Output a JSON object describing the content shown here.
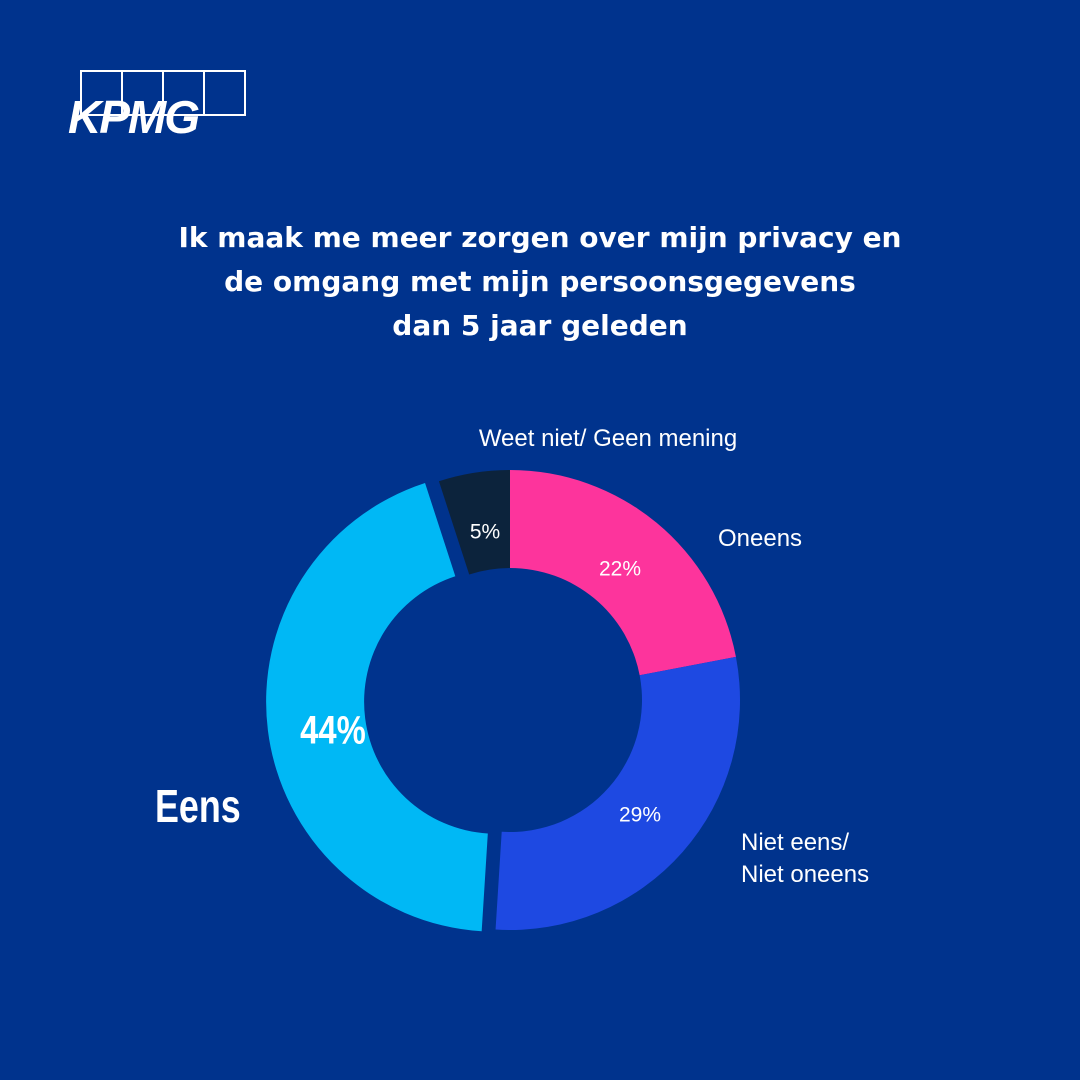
{
  "brand": {
    "logo_text": "KPMG"
  },
  "title_lines": [
    "Ik maak me meer zorgen over mijn privacy en",
    "de omgang met mijn persoonsgegevens",
    "dan 5 jaar geleden"
  ],
  "chart_data": {
    "type": "pie",
    "donut": true,
    "title": "Ik maak me meer zorgen over mijn privacy en de omgang met mijn persoonsgegevens dan 5 jaar geleden",
    "slices": [
      {
        "label": "Oneens",
        "value": 22,
        "value_label": "22%",
        "color": "#FD349C"
      },
      {
        "label": "Niet eens/ Niet oneens",
        "label_lines": [
          "Niet eens/",
          "Niet oneens"
        ],
        "value": 29,
        "value_label": "29%",
        "color": "#1E49E2"
      },
      {
        "label": "Eens",
        "value": 44,
        "value_label": "44%",
        "color": "#00B8F5",
        "exploded": true
      },
      {
        "label": "Weet niet/ Geen mening",
        "value": 5,
        "value_label": "5%",
        "color": "#0C233C"
      }
    ]
  },
  "colors": {
    "background": "#00338D",
    "text": "#FFFFFF"
  }
}
